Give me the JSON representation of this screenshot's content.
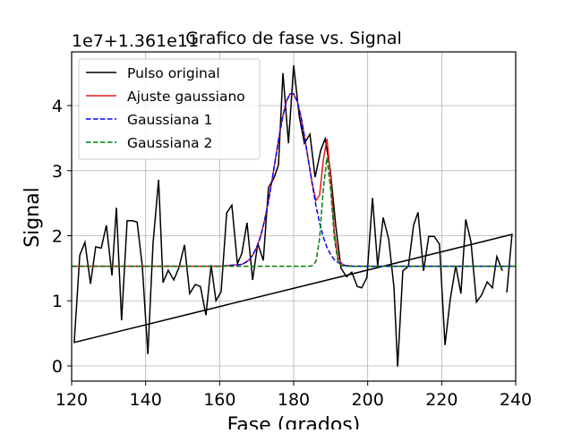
{
  "chart_data": {
    "type": "line",
    "title": "Grafico de fase vs. Signal",
    "offset_text": "1e7+1.361e11",
    "xlabel": "Fase (grados)",
    "ylabel": "Signal",
    "xlim": [
      120,
      240
    ],
    "xticks": [
      120,
      140,
      160,
      180,
      200,
      220,
      240
    ],
    "ylim": [
      -0.234,
      4.825
    ],
    "yticks": [
      0,
      1,
      2,
      3,
      4
    ],
    "grid": true,
    "legend": "upper left",
    "series": [
      {
        "name": "Pulso original",
        "color": "#000000",
        "dash": "solid",
        "x": [
          237.6,
          239,
          120.7,
          122.2,
          123.6,
          125.1,
          126.5,
          128,
          129.4,
          130.9,
          132.1,
          133.5,
          135,
          136.5,
          137.7,
          139.1,
          140.6,
          142,
          143.5,
          144.7,
          146.1,
          147.6,
          149,
          150.5,
          151.9,
          153.4,
          154.8,
          156.3,
          157.7,
          159,
          160.4,
          161.9,
          163.3,
          164.8,
          166,
          167.4,
          168.9,
          170.3,
          171.8,
          173.2,
          174.7,
          175.9,
          177.1,
          178.6,
          180,
          181.5,
          182.9,
          184.4,
          185.8,
          187.3,
          188.5,
          189.9,
          191.4,
          192.8,
          194.3,
          195.7,
          197.2,
          198.4,
          199.8,
          201.3,
          202.7,
          204.2,
          205.7,
          207.1,
          208.1,
          209.5,
          211,
          212.4,
          213.6,
          215.1,
          216.5,
          218,
          219.4,
          220.9,
          222.3,
          223.8,
          225.2,
          226.5,
          227.9,
          229.4,
          230.8,
          232.3,
          233.7,
          234.9,
          236.4
        ],
        "values": [
          1.13,
          2.02,
          0.36,
          1.7,
          1.9,
          1.26,
          1.83,
          1.81,
          2.16,
          1.39,
          2.43,
          0.7,
          2.23,
          2.23,
          2.21,
          1.53,
          0.18,
          1.88,
          2.86,
          1.28,
          1.47,
          1.32,
          1.51,
          1.86,
          1.11,
          1.25,
          1.22,
          0.78,
          1.55,
          1.0,
          1.14,
          2.35,
          2.47,
          1.57,
          1.73,
          2.2,
          1.32,
          1.88,
          1.62,
          2.74,
          2.89,
          3.09,
          4.5,
          3.42,
          4.62,
          3.84,
          3.42,
          3.56,
          2.9,
          3.31,
          3.49,
          3.01,
          2.14,
          1.5,
          1.37,
          1.44,
          1.22,
          1.2,
          1.36,
          2.58,
          1.54,
          2.28,
          1.94,
          1.21,
          -0.01,
          1.46,
          1.53,
          2.16,
          2.36,
          1.46,
          1.99,
          1.99,
          1.87,
          0.32,
          1.02,
          1.54,
          1.11,
          2.25,
          1.91,
          0.98,
          1.09,
          1.29,
          1.2,
          1.68,
          1.46
        ]
      },
      {
        "name": "Ajuste gaussiano",
        "color": "#e41a1c",
        "dash": "solid",
        "x": [
          120,
          160,
          166,
          167,
          168,
          169,
          170,
          171,
          172,
          173,
          174,
          175,
          176,
          177,
          178,
          179,
          180,
          181,
          182,
          183,
          184,
          185,
          186,
          187,
          188,
          189,
          190,
          191,
          192,
          193,
          194,
          195,
          196,
          200,
          240
        ],
        "values": [
          1.53,
          1.53,
          1.56,
          1.59,
          1.63,
          1.71,
          1.82,
          1.98,
          2.2,
          2.47,
          2.8,
          3.15,
          3.5,
          3.82,
          4.06,
          4.18,
          4.18,
          4.06,
          3.82,
          3.5,
          3.15,
          2.81,
          2.54,
          2.62,
          3.16,
          3.49,
          2.89,
          2.05,
          1.66,
          1.57,
          1.54,
          1.54,
          1.53,
          1.53,
          1.53
        ]
      },
      {
        "name": "Gaussiana 1",
        "color": "#0000ff",
        "dash": "dashed",
        "x": [
          120,
          160,
          166,
          167,
          168,
          169,
          170,
          171,
          172,
          173,
          174,
          175,
          176,
          177,
          178,
          179,
          180,
          181,
          182,
          183,
          184,
          185,
          186,
          187,
          188,
          189,
          190,
          191,
          192,
          193,
          194,
          195,
          196,
          200,
          240
        ],
        "values": [
          1.53,
          1.53,
          1.56,
          1.59,
          1.63,
          1.71,
          1.82,
          1.98,
          2.2,
          2.47,
          2.8,
          3.15,
          3.5,
          3.82,
          4.06,
          4.18,
          4.18,
          4.06,
          3.82,
          3.5,
          3.15,
          2.8,
          2.47,
          2.2,
          1.98,
          1.82,
          1.71,
          1.63,
          1.59,
          1.56,
          1.54,
          1.54,
          1.53,
          1.53,
          1.53
        ]
      },
      {
        "name": "Gaussiana 2",
        "color": "#008000",
        "dash": "dashed",
        "x": [
          120,
          160,
          166,
          167,
          168,
          169,
          170,
          171,
          172,
          173,
          174,
          175,
          176,
          177,
          178,
          179,
          180,
          181,
          182,
          183,
          184,
          185,
          186,
          187,
          188,
          189,
          190,
          191,
          192,
          193,
          194,
          195,
          196,
          200,
          240
        ],
        "values": [
          1.53,
          1.53,
          1.53,
          1.53,
          1.53,
          1.53,
          1.53,
          1.53,
          1.53,
          1.53,
          1.53,
          1.53,
          1.53,
          1.53,
          1.53,
          1.53,
          1.53,
          1.53,
          1.53,
          1.53,
          1.53,
          1.54,
          1.6,
          1.95,
          2.71,
          3.2,
          2.71,
          1.95,
          1.6,
          1.54,
          1.53,
          1.53,
          1.53,
          1.53,
          1.53
        ]
      }
    ]
  }
}
